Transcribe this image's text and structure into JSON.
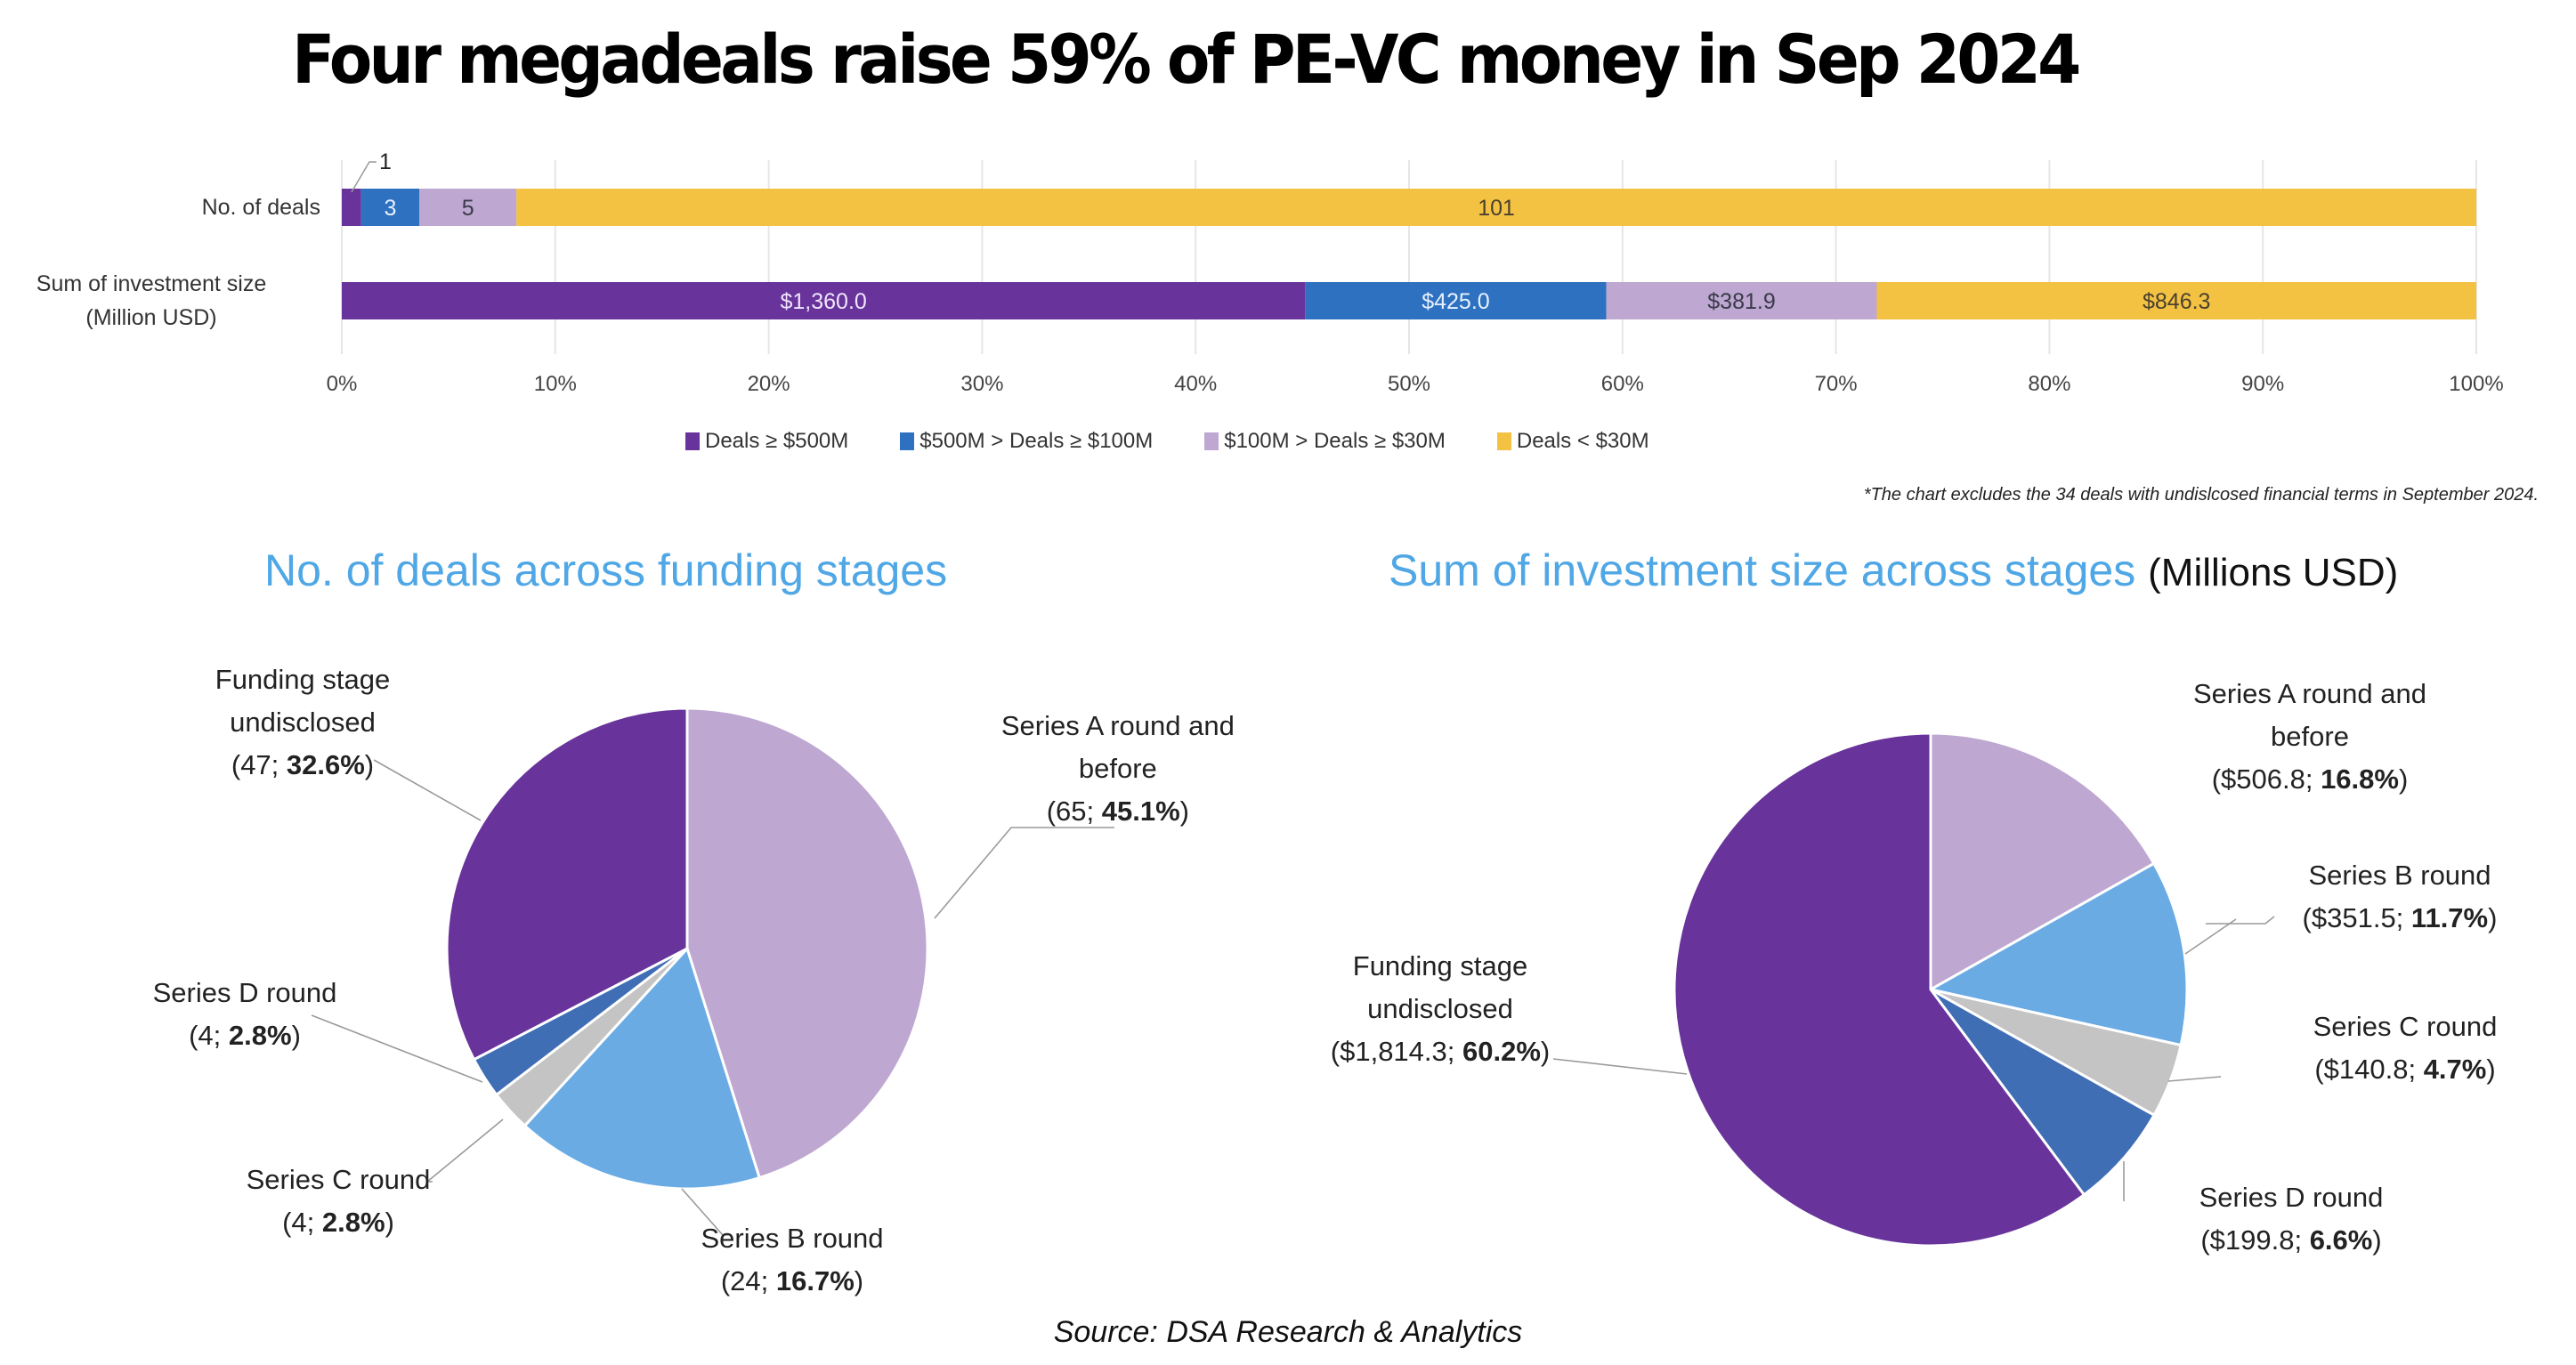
{
  "title": "Four megadeals raise 59% of PE-VC money in Sep 2024",
  "footnote": "*The chart excludes the 34 deals with undislcosed financial terms in September 2024.",
  "source": "Source: DSA Research & Analytics",
  "colors": {
    "purple": "#68339a",
    "blue": "#2e71c0",
    "lavender": "#bea7d0",
    "yellow": "#f4c242",
    "light_blue": "#6aabe4",
    "mid_blue": "#3f6eb5",
    "grey": "#c4c4c4",
    "pie_title": "#4fa7e6"
  },
  "chart_data": [
    {
      "type": "bar",
      "orientation": "horizontal-stacked-100",
      "categories": [
        "No. of deals",
        "Sum of investment size (Million USD)"
      ],
      "category_lines": [
        [
          "No. of deals"
        ],
        [
          "Sum of investment size",
          "(Million USD)"
        ]
      ],
      "series": [
        {
          "name": "Deals ≥ $500M",
          "color": "#68339a",
          "values": [
            1,
            1360.0
          ],
          "labels": [
            "1",
            "$1,360.0"
          ],
          "label_color": "#f0e6ff"
        },
        {
          "name": "$500M > Deals ≥ $100M",
          "color": "#2e71c0",
          "values": [
            3,
            425.0
          ],
          "labels": [
            "3",
            "$425.0"
          ],
          "label_color": "#e8f1ff"
        },
        {
          "name": "$100M > Deals ≥ $30M",
          "color": "#bea7d0",
          "values": [
            5,
            381.9
          ],
          "labels": [
            "5",
            "$381.9"
          ],
          "label_color": "#3a3a4a"
        },
        {
          "name": "Deals < $30M",
          "color": "#f4c242",
          "values": [
            101,
            846.3
          ],
          "labels": [
            "101",
            "$846.3"
          ],
          "label_color": "#4a4030"
        }
      ],
      "xlim": [
        0,
        100
      ],
      "xticks": [
        "0%",
        "10%",
        "20%",
        "30%",
        "40%",
        "50%",
        "60%",
        "70%",
        "80%",
        "90%",
        "100%"
      ],
      "grid": true,
      "legend": "bottom"
    },
    {
      "type": "pie",
      "title": "No. of deals across funding stages",
      "slices": [
        {
          "name": "Series A round and before",
          "lines": [
            "Series A round and",
            "before"
          ],
          "value": 65,
          "value_label": "65",
          "pct": 45.1,
          "color": "#bea7d0"
        },
        {
          "name": "Series B round",
          "lines": [
            "Series B round"
          ],
          "value": 24,
          "value_label": "24",
          "pct": 16.7,
          "color": "#6aabe4"
        },
        {
          "name": "Series C round",
          "lines": [
            "Series C round"
          ],
          "value": 4,
          "value_label": "4",
          "pct": 2.8,
          "color": "#c4c4c4"
        },
        {
          "name": "Series D round",
          "lines": [
            "Series D round"
          ],
          "value": 4,
          "value_label": "4",
          "pct": 2.8,
          "color": "#3f6eb5"
        },
        {
          "name": "Funding stage undisclosed",
          "lines": [
            "Funding stage",
            "undisclosed"
          ],
          "value": 47,
          "value_label": "47",
          "pct": 32.6,
          "color": "#68339a"
        }
      ]
    },
    {
      "type": "pie",
      "title": "Sum of investment size across stages",
      "title_unit": "(Millions USD)",
      "slices": [
        {
          "name": "Series A round and before",
          "lines": [
            "Series A round and",
            "before"
          ],
          "value": 506.8,
          "value_label": "$506.8",
          "pct": 16.8,
          "color": "#bea7d0"
        },
        {
          "name": "Series B round",
          "lines": [
            "Series B round"
          ],
          "value": 351.5,
          "value_label": "$351.5",
          "pct": 11.7,
          "color": "#6aabe4"
        },
        {
          "name": "Series C round",
          "lines": [
            "Series C round"
          ],
          "value": 140.8,
          "value_label": "$140.8",
          "pct": 4.7,
          "color": "#c4c4c4"
        },
        {
          "name": "Series D round",
          "lines": [
            "Series D round"
          ],
          "value": 199.8,
          "value_label": "$199.8",
          "pct": 6.6,
          "color": "#3f6eb5"
        },
        {
          "name": "Funding stage undisclosed",
          "lines": [
            "Funding stage",
            "undisclosed"
          ],
          "value": 1814.3,
          "value_label": "$1,814.3",
          "pct": 60.2,
          "color": "#68339a"
        }
      ]
    }
  ]
}
